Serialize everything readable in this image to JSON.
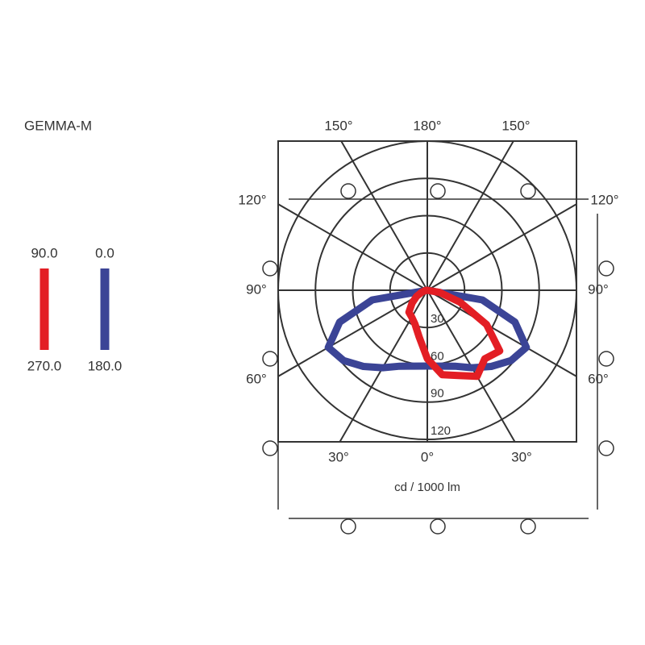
{
  "chart_data": {
    "type": "polar",
    "title": "GEMMA-M",
    "axis_label": "cd / 1000 lm",
    "angles": [
      -90,
      -80,
      -70,
      -60,
      -50,
      -40,
      -30,
      -20,
      -10,
      0,
      10,
      20,
      30,
      40,
      50,
      60,
      70,
      80,
      90
    ],
    "rlim": [
      0,
      120
    ],
    "rticks": [
      30,
      60,
      90,
      120
    ],
    "angle_ticks": [
      {
        "value": 150,
        "label": "150°"
      },
      {
        "value": 180,
        "label": "180°"
      },
      {
        "value": 150,
        "label": "150°"
      },
      {
        "value": 120,
        "label": "120°"
      },
      {
        "value": 120,
        "label": "120°"
      },
      {
        "value": 90,
        "label": "90°"
      },
      {
        "value": 90,
        "label": "90°"
      },
      {
        "value": 60,
        "label": "60°"
      },
      {
        "value": 60,
        "label": "60°"
      },
      {
        "value": 30,
        "label": "30°"
      },
      {
        "value": 0,
        "label": "0°"
      },
      {
        "value": 30,
        "label": "30°"
      }
    ],
    "series": [
      {
        "labels": [
          "90.0",
          "270.0"
        ],
        "color": "#e31e24",
        "values": [
          0,
          2,
          5,
          10,
          16,
          23,
          25,
          29,
          38,
          55,
          69,
          73,
          80,
          72,
          76,
          55,
          28,
          10,
          0
        ]
      },
      {
        "labels": [
          "0.0",
          "180.0"
        ],
        "color": "#3b4496",
        "values": [
          0,
          45,
          75,
          92,
          88,
          80,
          72,
          65,
          62,
          61,
          62,
          65,
          72,
          80,
          88,
          92,
          75,
          45,
          0
        ]
      }
    ]
  }
}
